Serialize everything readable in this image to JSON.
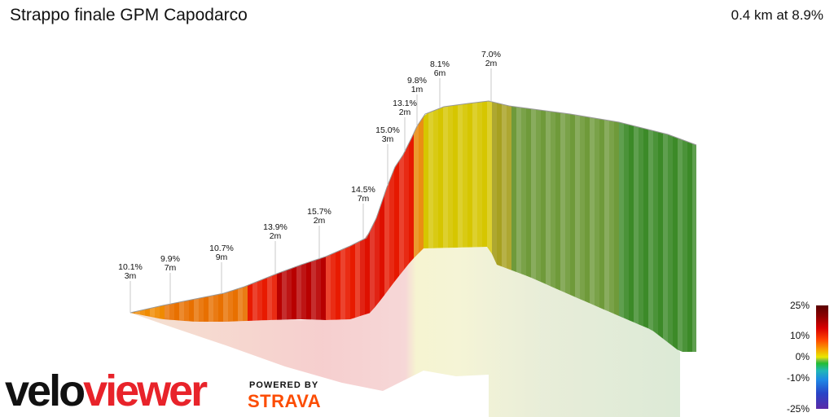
{
  "header": {
    "title": "Strappo finale GPM Capodarco",
    "summary": "0.4 km at 8.9%"
  },
  "chart_data": {
    "type": "area",
    "title": "Strappo finale GPM Capodarco",
    "distance_km": 0.4,
    "avg_gradient_pct": 8.9,
    "segments": [
      {
        "gradient": "10.1%",
        "gain": "3m"
      },
      {
        "gradient": "9.9%",
        "gain": "7m"
      },
      {
        "gradient": "10.7%",
        "gain": "9m"
      },
      {
        "gradient": "13.9%",
        "gain": "2m"
      },
      {
        "gradient": "15.7%",
        "gain": "2m"
      },
      {
        "gradient": "14.5%",
        "gain": "7m"
      },
      {
        "gradient": "15.0%",
        "gain": "3m"
      },
      {
        "gradient": "13.1%",
        "gain": "2m"
      },
      {
        "gradient": "9.8%",
        "gain": "1m"
      },
      {
        "gradient": "8.1%",
        "gain": "6m"
      },
      {
        "gradient": "7.0%",
        "gain": "2m"
      }
    ],
    "gradient_scale": [
      "25%",
      "10%",
      "0%",
      "-10%",
      "-25%"
    ],
    "colors": {
      "steep": "#b80000",
      "hard": "#e81a00",
      "medium": "#f08a00",
      "moderate": "#d6c600",
      "easy": "#6f9a3a",
      "flat": "#3c8a28"
    }
  },
  "branding": {
    "logo_part1": "velo",
    "logo_part2": "viewer",
    "powered_by": "POWERED BY",
    "strava": "STRAVA"
  }
}
